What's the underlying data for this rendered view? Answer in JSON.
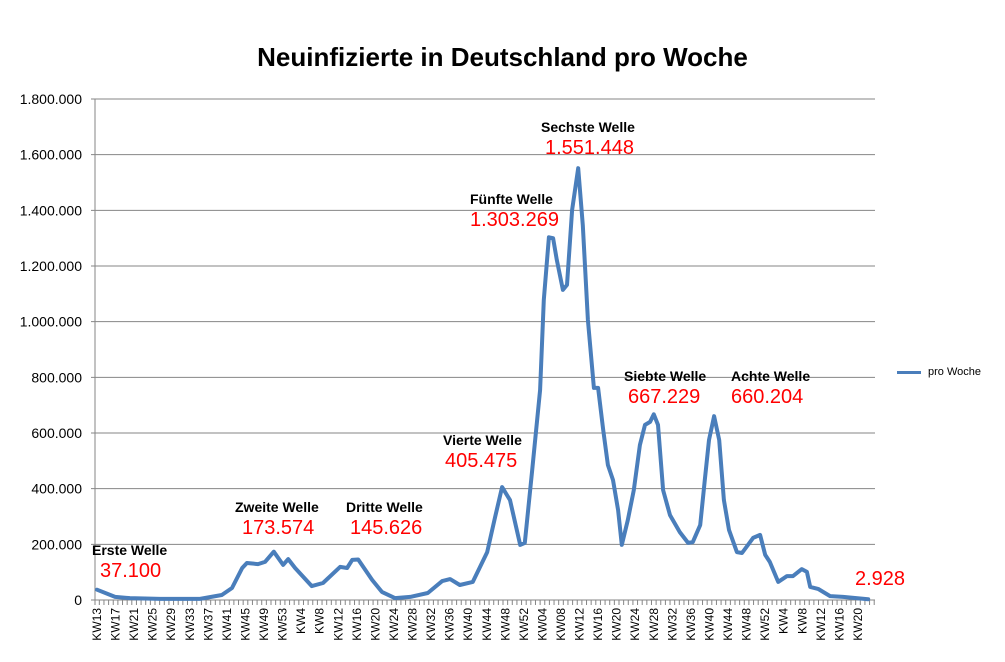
{
  "chart_data": {
    "type": "line",
    "title": "Neuinfizierte in Deutschland pro Woche",
    "xlabel": "",
    "ylabel": "",
    "ylim": [
      0,
      1800000
    ],
    "yticks": [
      0,
      200000,
      400000,
      600000,
      800000,
      1000000,
      1200000,
      1400000,
      1600000,
      1800000
    ],
    "ytick_labels": [
      "0",
      "200.000",
      "400.000",
      "600.000",
      "800.000",
      "1.000.000",
      "1.200.000",
      "1.400.000",
      "1.600.000",
      "1.800.000"
    ],
    "x_unit": "weeks since KW13 2020",
    "xlim": [
      0,
      167.7
    ],
    "xtick_labels": [
      "KW13",
      "KW17",
      "KW21",
      "KW25",
      "KW29",
      "KW33",
      "KW37",
      "KW41",
      "KW45",
      "KW49",
      "KW53",
      "KW4",
      "KW8",
      "KW12",
      "KW16",
      "KW20",
      "KW24",
      "KW28",
      "KW32",
      "KW36",
      "KW40",
      "KW44",
      "KW48",
      "KW52",
      "KW04",
      "KW08",
      "KW12",
      "KW16",
      "KW20",
      "KW24",
      "KW28",
      "KW32",
      "KW36",
      "KW40",
      "KW44",
      "KW48",
      "KW52",
      "KW4",
      "KW8",
      "KW12",
      "KW16",
      "KW20"
    ],
    "xtick_step_weeks": 4,
    "grid": true,
    "legend_position": "right",
    "series": [
      {
        "name": "pro Woche",
        "color": "#4a7ebb",
        "points": [
          [
            0,
            37100
          ],
          [
            3.9,
            11000
          ],
          [
            7.1,
            7000
          ],
          [
            13.6,
            4000
          ],
          [
            22.2,
            4000
          ],
          [
            26.9,
            18000
          ],
          [
            29.1,
            43000
          ],
          [
            31.3,
            115000
          ],
          [
            32.3,
            133000
          ],
          [
            34.7,
            129000
          ],
          [
            36.2,
            137000
          ],
          [
            38.1,
            173574
          ],
          [
            40.1,
            126000
          ],
          [
            41.2,
            147000
          ],
          [
            42.7,
            115000
          ],
          [
            46.3,
            50000
          ],
          [
            48.7,
            61000
          ],
          [
            52.4,
            119000
          ],
          [
            53.9,
            115000
          ],
          [
            55.0,
            144000
          ],
          [
            56.3,
            145626
          ],
          [
            59.3,
            72000
          ],
          [
            61.4,
            29000
          ],
          [
            64.2,
            7000
          ],
          [
            67.5,
            11000
          ],
          [
            71.3,
            25000
          ],
          [
            74.4,
            68000
          ],
          [
            76.1,
            75000
          ],
          [
            78.2,
            54000
          ],
          [
            81.0,
            65000
          ],
          [
            84.1,
            172000
          ],
          [
            85.8,
            298000
          ],
          [
            87.3,
            405475
          ],
          [
            89.0,
            359000
          ],
          [
            91.2,
            198000
          ],
          [
            92.2,
            205000
          ],
          [
            93.8,
            467000
          ],
          [
            95.5,
            755000
          ],
          [
            96.3,
            1078000
          ],
          [
            97.4,
            1303269
          ],
          [
            98.3,
            1300000
          ],
          [
            99.1,
            1222000
          ],
          [
            100.4,
            1114000
          ],
          [
            101.3,
            1132000
          ],
          [
            102.4,
            1401000
          ],
          [
            103.7,
            1551448
          ],
          [
            104.7,
            1347000
          ],
          [
            105.8,
            1006000
          ],
          [
            107.1,
            762000
          ],
          [
            108.0,
            762000
          ],
          [
            109.1,
            611000
          ],
          [
            110.1,
            485000
          ],
          [
            111.2,
            431000
          ],
          [
            112.3,
            323000
          ],
          [
            113.1,
            198000
          ],
          [
            114.4,
            287000
          ],
          [
            115.7,
            395000
          ],
          [
            117.0,
            557000
          ],
          [
            118.1,
            629000
          ],
          [
            119.2,
            640000
          ],
          [
            120.0,
            667229
          ],
          [
            120.9,
            629000
          ],
          [
            122.0,
            395000
          ],
          [
            123.5,
            305000
          ],
          [
            125.6,
            244000
          ],
          [
            127.4,
            205000
          ],
          [
            128.4,
            208000
          ],
          [
            130.0,
            269000
          ],
          [
            131.0,
            431000
          ],
          [
            131.9,
            575000
          ],
          [
            133.0,
            660204
          ],
          [
            134.1,
            575000
          ],
          [
            135.1,
            359000
          ],
          [
            136.2,
            252000
          ],
          [
            137.9,
            172000
          ],
          [
            139.0,
            169000
          ],
          [
            141.4,
            223000
          ],
          [
            142.9,
            234000
          ],
          [
            144.0,
            162000
          ],
          [
            145.0,
            137000
          ],
          [
            146.8,
            65000
          ],
          [
            148.7,
            86000
          ],
          [
            150.0,
            86000
          ],
          [
            151.9,
            111000
          ],
          [
            153.0,
            101000
          ],
          [
            153.7,
            47000
          ],
          [
            155.4,
            40000
          ],
          [
            158.0,
            14000
          ],
          [
            160.8,
            11000
          ],
          [
            166.2,
            2928
          ]
        ]
      }
    ],
    "annotations": [
      {
        "label": "Erste Welle",
        "value": "37.100"
      },
      {
        "label": "Zweite Welle",
        "value": "173.574"
      },
      {
        "label": "Dritte Welle",
        "value": "145.626"
      },
      {
        "label": "Vierte Welle",
        "value": "405.475"
      },
      {
        "label": "Fünfte Welle",
        "value": "1.303.269"
      },
      {
        "label": "Sechste Welle",
        "value": "1.551.448"
      },
      {
        "label": "Siebte Welle",
        "value": "667.229"
      },
      {
        "label": "Achte Welle",
        "value": "660.204"
      },
      {
        "label": "",
        "value": "2.928"
      }
    ]
  }
}
